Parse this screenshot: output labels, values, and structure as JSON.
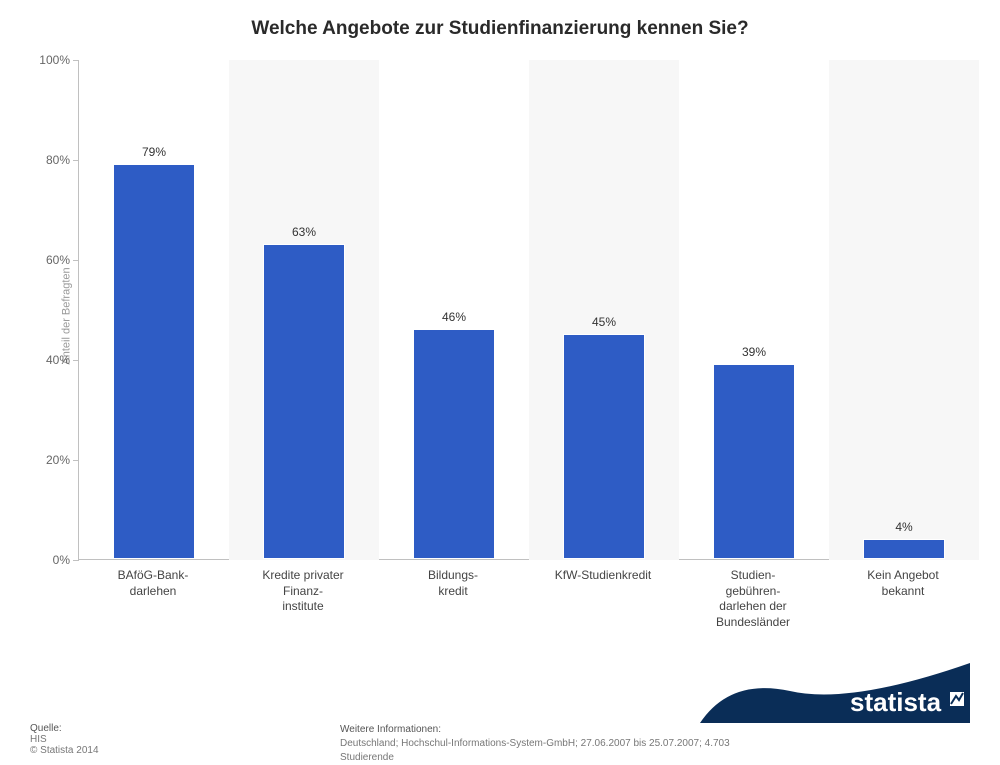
{
  "title": "Welche Angebote zur Studienfinanzierung kennen Sie?",
  "chart": {
    "type": "bar",
    "y_axis_label": "Anteil der Befragten",
    "ylim": [
      0,
      100
    ],
    "ytick_step": 20,
    "ytick_suffix": "%",
    "background_color": "#ffffff",
    "band_color": "#f7f7f7",
    "axis_color": "#c0c0c0",
    "title_fontsize": 19,
    "label_fontsize": 12,
    "bar_color": "#2e5cc5",
    "bar_border_color": "#ffffff",
    "bar_width_ratio": 0.55,
    "categories": [
      "BAföG-Bank-\ndarlehen",
      "Kredite privater\nFinanz-\ninstitute",
      "Bildungs-\nkredit",
      "KfW-Studienkredit",
      "Studien-\ngebühren-\ndarlehen der\nBundesländer",
      "Kein Angebot\nbekannt"
    ],
    "values": [
      79,
      63,
      46,
      45,
      39,
      4
    ],
    "value_label_suffix": "%"
  },
  "footer": {
    "source_heading": "Quelle:",
    "source_line1": "HIS",
    "source_line2": "© Statista 2014",
    "info_heading": "Weitere Informationen:",
    "info_text": "Deutschland; Hochschul-Informations-System-GmbH; 27.06.2007 bis 25.07.2007; 4.703 Studierende"
  },
  "logo": {
    "text": "statista",
    "color_bg": "#0a2d57",
    "color_text": "#ffffff"
  }
}
